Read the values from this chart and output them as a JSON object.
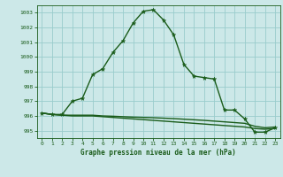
{
  "title": "Graphe pression niveau de la mer (hPa)",
  "bg_color": "#cce8e8",
  "grid_color": "#99cccc",
  "line_color": "#1a5c1a",
  "xlim": [
    -0.5,
    23.5
  ],
  "ylim": [
    994.5,
    1003.5
  ],
  "yticks": [
    995,
    996,
    997,
    998,
    999,
    1000,
    1001,
    1002,
    1003
  ],
  "xticks": [
    0,
    1,
    2,
    3,
    4,
    5,
    6,
    7,
    8,
    9,
    10,
    11,
    12,
    13,
    14,
    15,
    16,
    17,
    18,
    19,
    20,
    21,
    22,
    23
  ],
  "line1_x": [
    0,
    1,
    2,
    3,
    4,
    5,
    6,
    7,
    8,
    9,
    10,
    11,
    12,
    13,
    14,
    15,
    16,
    17,
    18,
    19,
    20,
    21,
    22,
    23
  ],
  "line1_y": [
    996.2,
    996.1,
    996.1,
    997.0,
    997.2,
    998.8,
    999.2,
    1000.3,
    1001.1,
    1002.3,
    1003.1,
    1003.2,
    1002.5,
    1001.5,
    999.5,
    998.7,
    998.6,
    998.5,
    996.4,
    996.4,
    995.8,
    994.9,
    994.9,
    995.2
  ],
  "line2_x": [
    0,
    1,
    2,
    3,
    4,
    5,
    6,
    7,
    8,
    9,
    10,
    11,
    12,
    13,
    14,
    15,
    16,
    17,
    18,
    19,
    20,
    21,
    22,
    23
  ],
  "line2_y": [
    996.2,
    996.1,
    996.05,
    996.0,
    996.0,
    996.0,
    995.95,
    995.9,
    995.85,
    995.8,
    995.75,
    995.7,
    995.65,
    995.6,
    995.55,
    995.5,
    995.45,
    995.4,
    995.35,
    995.3,
    995.25,
    995.15,
    995.1,
    995.15
  ],
  "line3_x": [
    0,
    1,
    2,
    3,
    4,
    5,
    6,
    7,
    8,
    9,
    10,
    11,
    12,
    13,
    14,
    15,
    16,
    17,
    18,
    19,
    20,
    21,
    22,
    23
  ],
  "line3_y": [
    996.2,
    996.1,
    996.05,
    996.05,
    996.05,
    996.05,
    996.0,
    995.98,
    995.95,
    995.92,
    995.9,
    995.88,
    995.85,
    995.82,
    995.78,
    995.74,
    995.7,
    995.65,
    995.6,
    995.55,
    995.5,
    995.3,
    995.2,
    995.25
  ]
}
